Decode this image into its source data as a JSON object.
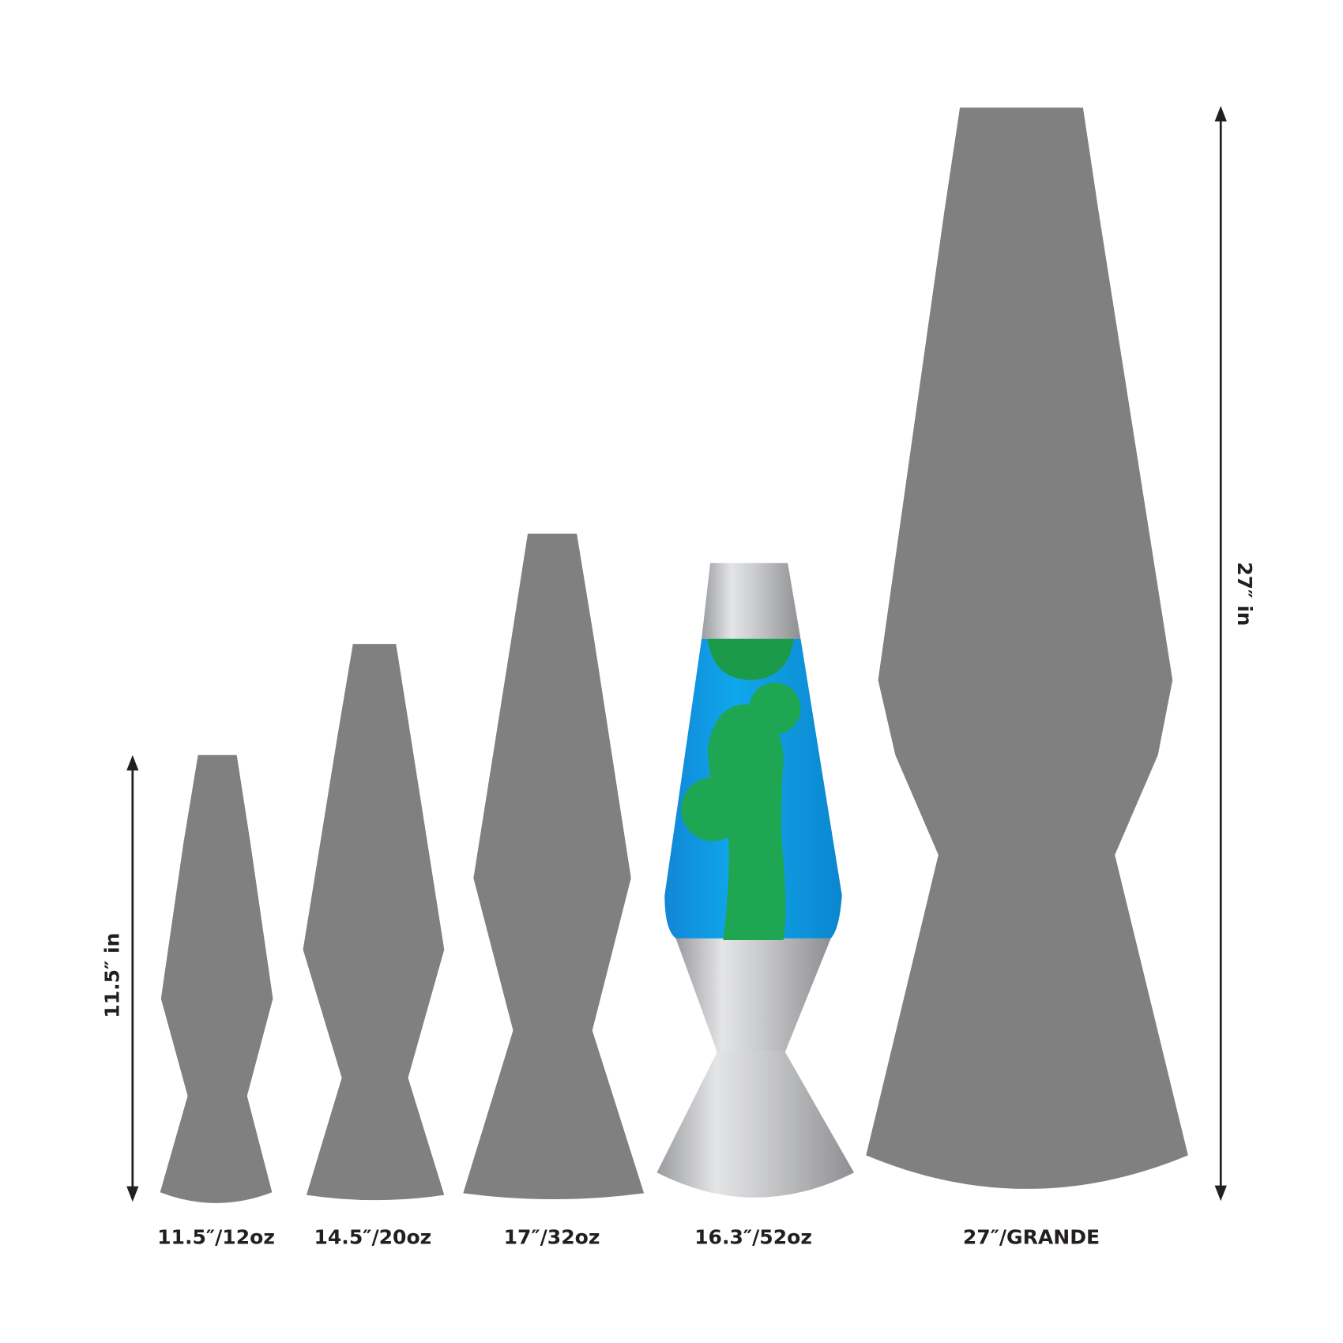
{
  "lamps": [
    {
      "label": "11.5″/12oz"
    },
    {
      "label": "14.5″/20oz"
    },
    {
      "label": "17″/32oz"
    },
    {
      "label": "16.3″/52oz"
    },
    {
      "label": "27″/GRANDE"
    }
  ],
  "dimensions": [
    {
      "label": "11.5″ in"
    },
    {
      "label": "27″ in"
    }
  ]
}
